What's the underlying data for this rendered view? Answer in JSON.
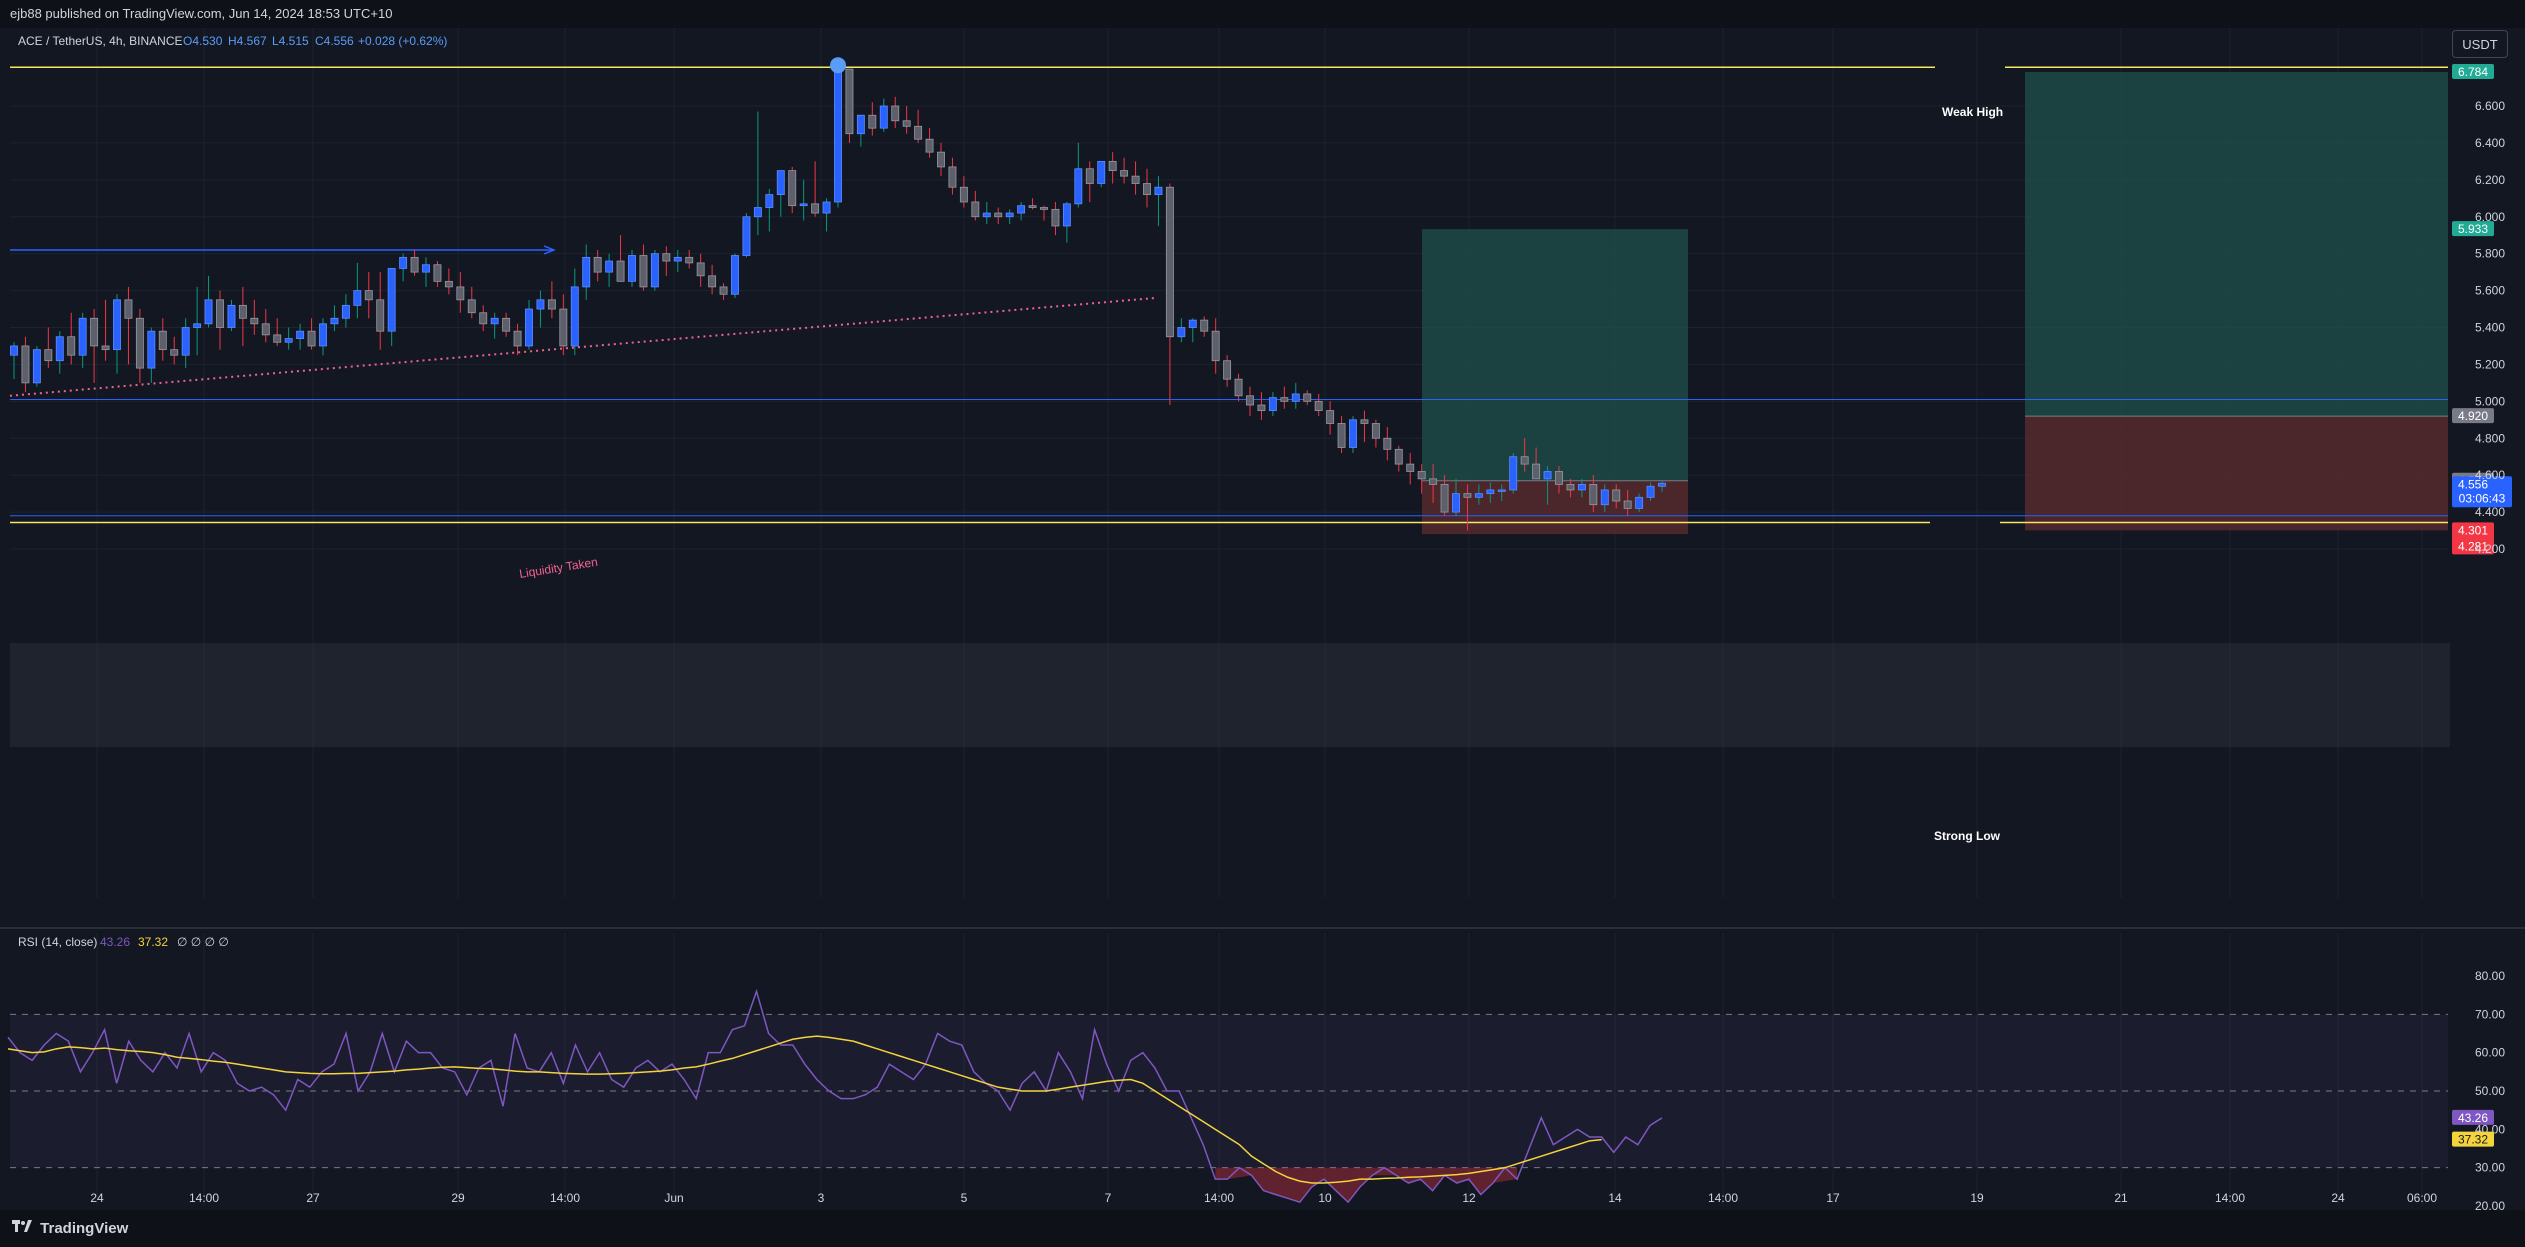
{
  "header": {
    "publish_line": "ejb88 published on TradingView.com, Jun 14, 2024 18:53 UTC+10",
    "symbol": "ACE / TetherUS, 4h, BINANCE",
    "ohlc": {
      "open": "O4.530",
      "high": "H4.567",
      "low": "L4.515",
      "close": "C4.556",
      "change": "+0.028 (+0.62%)"
    },
    "currency_button": "USDT"
  },
  "annotations": {
    "weak_high": "Weak High",
    "strong_low": "Strong Low",
    "liquidity_taken": "Liquidity Taken"
  },
  "price_labels": {
    "top_target": "6.784",
    "mid_target": "5.933",
    "entry": "4.920",
    "current_level": "4.570",
    "last_price": "4.556",
    "countdown": "03:06:43",
    "stop_a": "4.301",
    "stop_b": "4.281"
  },
  "rsi": {
    "title": "RSI (14, close)",
    "value": "43.26",
    "ma_value": "37.32",
    "extra": "∅ ∅ ∅ ∅"
  },
  "footer": {
    "brand": "TradingView"
  },
  "colors": {
    "bull": "#2962ff",
    "bear": "#5d606b",
    "level_yellow": "#f5e663",
    "level_blue": "#2962ff",
    "liquidity": "#f06292",
    "rsi_line": "#7e57c2",
    "rsi_ma": "#f5d33d"
  },
  "chart_data": {
    "type": "candlestick",
    "symbol": "ACE / TetherUS",
    "interval": "4h",
    "exchange": "BINANCE",
    "y_axis_ticks": [
      6.6,
      6.4,
      6.2,
      6.0,
      5.8,
      5.6,
      5.4,
      5.2,
      5.0,
      4.8,
      4.6,
      4.4,
      4.2
    ],
    "ylim": [
      4.1,
      6.9
    ],
    "x_tick_labels": [
      "24",
      "14:00",
      "27",
      "29",
      "14:00",
      "Jun",
      "3",
      "5",
      "7",
      "14:00",
      "10",
      "12",
      "14",
      "14:00",
      "17",
      "19",
      "21",
      "14:00",
      "24",
      "06:00"
    ],
    "levels": {
      "weak_high": 6.81,
      "strong_low": 4.36,
      "range_top": 5.01,
      "range_bottom": 4.38,
      "arrow_line": 5.82
    },
    "liquidity_line": {
      "from": 5.03,
      "to": 5.56
    },
    "positions": [
      {
        "entry": 4.57,
        "target": 5.933,
        "stop": 4.281
      },
      {
        "entry": 4.92,
        "target": 6.784,
        "stop": 4.301
      }
    ],
    "candles_ohlc": [
      [
        5.25,
        5.32,
        5.12,
        5.3
      ],
      [
        5.3,
        5.35,
        5.05,
        5.1
      ],
      [
        5.1,
        5.3,
        5.08,
        5.28
      ],
      [
        5.28,
        5.4,
        5.18,
        5.22
      ],
      [
        5.22,
        5.38,
        5.15,
        5.35
      ],
      [
        5.35,
        5.48,
        5.2,
        5.25
      ],
      [
        5.25,
        5.48,
        5.18,
        5.45
      ],
      [
        5.45,
        5.5,
        5.1,
        5.3
      ],
      [
        5.3,
        5.55,
        5.22,
        5.28
      ],
      [
        5.28,
        5.58,
        5.15,
        5.55
      ],
      [
        5.55,
        5.62,
        5.2,
        5.45
      ],
      [
        5.45,
        5.5,
        5.1,
        5.18
      ],
      [
        5.18,
        5.4,
        5.1,
        5.38
      ],
      [
        5.38,
        5.45,
        5.22,
        5.28
      ],
      [
        5.28,
        5.35,
        5.2,
        5.25
      ],
      [
        5.25,
        5.45,
        5.18,
        5.4
      ],
      [
        5.4,
        5.62,
        5.25,
        5.42
      ],
      [
        5.42,
        5.68,
        5.4,
        5.55
      ],
      [
        5.55,
        5.6,
        5.28,
        5.4
      ],
      [
        5.4,
        5.55,
        5.38,
        5.52
      ],
      [
        5.52,
        5.62,
        5.3,
        5.45
      ],
      [
        5.45,
        5.55,
        5.36,
        5.42
      ],
      [
        5.42,
        5.5,
        5.32,
        5.36
      ],
      [
        5.36,
        5.45,
        5.3,
        5.32
      ],
      [
        5.32,
        5.4,
        5.28,
        5.34
      ],
      [
        5.34,
        5.42,
        5.28,
        5.38
      ],
      [
        5.38,
        5.45,
        5.28,
        5.3
      ],
      [
        5.3,
        5.45,
        5.25,
        5.42
      ],
      [
        5.42,
        5.52,
        5.38,
        5.45
      ],
      [
        5.45,
        5.58,
        5.4,
        5.52
      ],
      [
        5.52,
        5.75,
        5.45,
        5.6
      ],
      [
        5.6,
        5.7,
        5.45,
        5.55
      ],
      [
        5.55,
        5.7,
        5.28,
        5.38
      ],
      [
        5.38,
        5.72,
        5.3,
        5.72
      ],
      [
        5.72,
        5.8,
        5.65,
        5.78
      ],
      [
        5.78,
        5.82,
        5.68,
        5.7
      ],
      [
        5.7,
        5.78,
        5.62,
        5.74
      ],
      [
        5.74,
        5.76,
        5.62,
        5.65
      ],
      [
        5.65,
        5.72,
        5.58,
        5.62
      ],
      [
        5.62,
        5.7,
        5.48,
        5.55
      ],
      [
        5.55,
        5.62,
        5.45,
        5.48
      ],
      [
        5.48,
        5.52,
        5.38,
        5.42
      ],
      [
        5.42,
        5.48,
        5.34,
        5.45
      ],
      [
        5.45,
        5.48,
        5.35,
        5.38
      ],
      [
        5.38,
        5.42,
        5.25,
        5.3
      ],
      [
        5.3,
        5.55,
        5.28,
        5.5
      ],
      [
        5.5,
        5.6,
        5.4,
        5.55
      ],
      [
        5.55,
        5.65,
        5.45,
        5.5
      ],
      [
        5.5,
        5.58,
        5.25,
        5.3
      ],
      [
        5.3,
        5.72,
        5.25,
        5.62
      ],
      [
        5.62,
        5.85,
        5.55,
        5.78
      ],
      [
        5.78,
        5.82,
        5.65,
        5.7
      ],
      [
        5.7,
        5.8,
        5.62,
        5.76
      ],
      [
        5.76,
        5.9,
        5.68,
        5.65
      ],
      [
        5.65,
        5.82,
        5.62,
        5.79
      ],
      [
        5.79,
        5.85,
        5.6,
        5.62
      ],
      [
        5.62,
        5.82,
        5.6,
        5.8
      ],
      [
        5.8,
        5.84,
        5.68,
        5.76
      ],
      [
        5.76,
        5.82,
        5.7,
        5.78
      ],
      [
        5.78,
        5.82,
        5.72,
        5.75
      ],
      [
        5.75,
        5.8,
        5.62,
        5.68
      ],
      [
        5.68,
        5.74,
        5.58,
        5.62
      ],
      [
        5.62,
        5.64,
        5.55,
        5.58
      ],
      [
        5.58,
        5.8,
        5.56,
        5.79
      ],
      [
        5.79,
        6.02,
        5.78,
        6.0
      ],
      [
        6.0,
        6.57,
        5.9,
        6.05
      ],
      [
        6.05,
        6.15,
        5.92,
        6.12
      ],
      [
        6.12,
        6.25,
        6.0,
        6.25
      ],
      [
        6.25,
        6.27,
        6.02,
        6.06
      ],
      [
        6.06,
        6.2,
        5.98,
        6.07
      ],
      [
        6.07,
        6.3,
        6.0,
        6.02
      ],
      [
        6.02,
        6.1,
        5.92,
        6.08
      ],
      [
        6.08,
        6.81,
        6.05,
        6.8
      ],
      [
        6.8,
        6.8,
        6.4,
        6.45
      ],
      [
        6.45,
        6.52,
        6.38,
        6.55
      ],
      [
        6.55,
        6.62,
        6.44,
        6.48
      ],
      [
        6.48,
        6.64,
        6.46,
        6.6
      ],
      [
        6.6,
        6.65,
        6.48,
        6.52
      ],
      [
        6.52,
        6.6,
        6.45,
        6.49
      ],
      [
        6.49,
        6.58,
        6.4,
        6.42
      ],
      [
        6.42,
        6.48,
        6.32,
        6.35
      ],
      [
        6.35,
        6.4,
        6.22,
        6.27
      ],
      [
        6.27,
        6.32,
        6.12,
        6.16
      ],
      [
        6.16,
        6.22,
        6.05,
        6.08
      ],
      [
        6.08,
        6.14,
        5.98,
        6.0
      ],
      [
        6.0,
        6.08,
        5.96,
        6.02
      ],
      [
        6.02,
        6.05,
        5.96,
        6.0
      ],
      [
        6.0,
        6.04,
        5.96,
        6.02
      ],
      [
        6.02,
        6.08,
        5.98,
        6.06
      ],
      [
        6.06,
        6.1,
        6.04,
        6.05
      ],
      [
        6.05,
        6.06,
        5.98,
        6.04
      ],
      [
        6.04,
        6.08,
        5.9,
        5.95
      ],
      [
        5.95,
        6.08,
        5.86,
        6.07
      ],
      [
        6.07,
        6.4,
        6.05,
        6.26
      ],
      [
        6.26,
        6.3,
        6.08,
        6.18
      ],
      [
        6.18,
        6.3,
        6.16,
        6.3
      ],
      [
        6.3,
        6.35,
        6.18,
        6.25
      ],
      [
        6.25,
        6.32,
        6.18,
        6.22
      ],
      [
        6.22,
        6.3,
        6.12,
        6.18
      ],
      [
        6.18,
        6.26,
        6.05,
        6.12
      ],
      [
        6.12,
        6.22,
        5.95,
        6.16
      ],
      [
        6.16,
        6.18,
        4.98,
        5.35
      ],
      [
        5.35,
        5.45,
        5.32,
        5.4
      ],
      [
        5.4,
        5.45,
        5.32,
        5.44
      ],
      [
        5.44,
        5.46,
        5.35,
        5.38
      ],
      [
        5.38,
        5.45,
        5.15,
        5.22
      ],
      [
        5.22,
        5.25,
        5.08,
        5.12
      ],
      [
        5.12,
        5.15,
        5.0,
        5.03
      ],
      [
        5.03,
        5.08,
        4.92,
        4.98
      ],
      [
        4.98,
        5.05,
        4.9,
        4.95
      ],
      [
        4.95,
        5.05,
        4.92,
        5.02
      ],
      [
        5.02,
        5.08,
        4.96,
        5.0
      ],
      [
        5.0,
        5.1,
        4.96,
        5.04
      ],
      [
        5.04,
        5.06,
        4.98,
        5.0
      ],
      [
        5.0,
        5.04,
        4.92,
        4.95
      ],
      [
        4.95,
        5.0,
        4.82,
        4.88
      ],
      [
        4.88,
        4.92,
        4.72,
        4.75
      ],
      [
        4.75,
        4.92,
        4.72,
        4.9
      ],
      [
        4.9,
        4.95,
        4.78,
        4.88
      ],
      [
        4.88,
        4.9,
        4.75,
        4.8
      ],
      [
        4.8,
        4.86,
        4.68,
        4.74
      ],
      [
        4.74,
        4.76,
        4.62,
        4.66
      ],
      [
        4.66,
        4.72,
        4.55,
        4.62
      ],
      [
        4.62,
        4.66,
        4.5,
        4.58
      ],
      [
        4.58,
        4.66,
        4.45,
        4.55
      ],
      [
        4.55,
        4.6,
        4.38,
        4.4
      ],
      [
        4.4,
        4.58,
        4.38,
        4.5
      ],
      [
        4.5,
        4.55,
        4.3,
        4.48
      ],
      [
        4.48,
        4.55,
        4.44,
        4.5
      ],
      [
        4.5,
        4.56,
        4.45,
        4.52
      ],
      [
        4.52,
        4.55,
        4.46,
        4.52
      ],
      [
        4.52,
        4.72,
        4.5,
        4.7
      ],
      [
        4.7,
        4.8,
        4.62,
        4.66
      ],
      [
        4.66,
        4.75,
        4.58,
        4.58
      ],
      [
        4.58,
        4.65,
        4.44,
        4.62
      ],
      [
        4.62,
        4.65,
        4.5,
        4.55
      ],
      [
        4.55,
        4.58,
        4.48,
        4.52
      ],
      [
        4.52,
        4.58,
        4.48,
        4.55
      ],
      [
        4.55,
        4.6,
        4.4,
        4.44
      ],
      [
        4.44,
        4.55,
        4.4,
        4.52
      ],
      [
        4.52,
        4.55,
        4.42,
        4.46
      ],
      [
        4.46,
        4.52,
        4.38,
        4.42
      ],
      [
        4.42,
        4.5,
        4.4,
        4.48
      ],
      [
        4.48,
        4.56,
        4.46,
        4.54
      ],
      [
        4.54,
        4.57,
        4.51,
        4.556
      ]
    ],
    "rsi_series": [
      {
        "name": "RSI",
        "values": [
          64,
          60,
          58,
          62,
          65,
          63,
          55,
          60,
          66,
          52,
          63,
          58,
          55,
          60,
          56,
          65,
          55,
          60,
          58,
          52,
          50,
          51,
          49,
          45,
          53,
          51,
          55,
          57,
          65,
          50,
          55,
          65,
          55,
          63,
          60,
          60,
          56,
          55,
          49,
          56,
          58,
          46,
          65,
          56,
          55,
          60,
          52,
          62,
          55,
          60,
          53,
          51,
          56,
          58,
          55,
          57,
          53,
          48,
          60,
          60,
          66,
          67,
          76,
          65,
          62,
          62,
          57,
          53,
          50,
          48,
          48,
          49,
          51,
          57,
          55,
          53,
          57,
          65,
          63,
          62,
          55,
          52,
          50,
          45,
          52,
          55,
          50,
          60,
          55,
          48,
          66,
          57,
          50,
          58,
          60,
          56,
          50,
          50,
          43,
          36,
          27,
          27,
          30,
          28,
          24,
          23,
          22,
          21,
          25,
          27,
          24,
          21,
          25,
          28,
          30,
          28,
          26,
          27,
          24,
          28,
          26,
          27,
          23,
          26,
          30,
          27,
          35,
          43,
          36,
          38,
          40,
          38,
          38,
          34,
          38,
          36,
          41,
          43
        ]
      },
      {
        "name": "RSI MA",
        "values": [
          61,
          60.5,
          60,
          60.2,
          61,
          61.5,
          61.3,
          61,
          61.2,
          60.8,
          60.5,
          60.3,
          60,
          59.5,
          58.8,
          58.5,
          58.2,
          57.8,
          57.5,
          57,
          56.5,
          56,
          55.5,
          55,
          54.8,
          54.6,
          54.5,
          54.5,
          54.6,
          54.6,
          54.8,
          55,
          55.2,
          55.5,
          55.7,
          56,
          56.2,
          56.3,
          56.1,
          55.9,
          55.8,
          55.5,
          55.2,
          55,
          55,
          54.8,
          54.6,
          54.5,
          54.4,
          54.4,
          54.5,
          54.6,
          54.8,
          55,
          55.2,
          55.5,
          56,
          56.3,
          57,
          57.8,
          58.5,
          59.5,
          60.5,
          61.5,
          62.5,
          63.5,
          64,
          64.3,
          64,
          63.5,
          63,
          62,
          61,
          60,
          59,
          58,
          57,
          56,
          55,
          54,
          53,
          52,
          51,
          50.5,
          50,
          50,
          50,
          50.5,
          51,
          51.5,
          52,
          52.5,
          52.8,
          53,
          52,
          50,
          48,
          46,
          44,
          42,
          40,
          38,
          36,
          33,
          31,
          29,
          27.5,
          26.5,
          26,
          26,
          26.2,
          26.5,
          27,
          27,
          27.2,
          27.3,
          27.5,
          27.6,
          27.8,
          28,
          28.2,
          28.5,
          29,
          29.5,
          30,
          31,
          32,
          33,
          34,
          35,
          36,
          37,
          37.32
        ]
      }
    ],
    "rsi_ticks": [
      80,
      70,
      60,
      50,
      40,
      30,
      20
    ],
    "rsi_ylim": [
      15,
      82
    ]
  }
}
